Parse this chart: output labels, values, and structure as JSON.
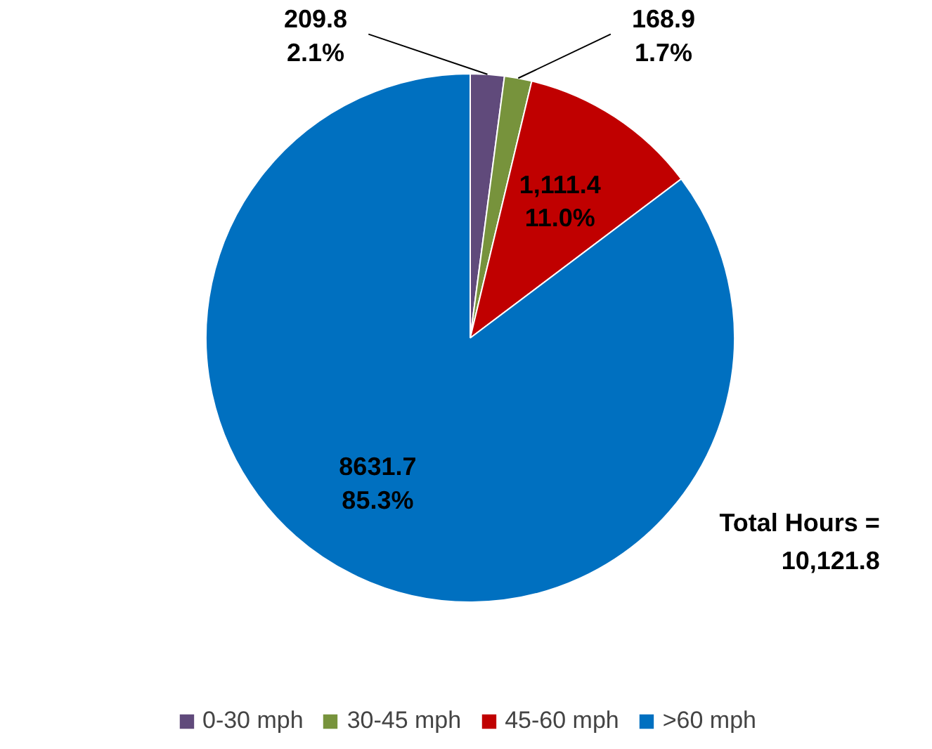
{
  "chart_data": {
    "type": "pie",
    "categories": [
      "0-30 mph",
      "30-45 mph",
      "45-60 mph",
      ">60 mph"
    ],
    "values": [
      209.8,
      168.9,
      1111.4,
      8631.7
    ],
    "colors": [
      "#604a7b",
      "#77933c",
      "#c00000",
      "#0070c0"
    ],
    "value_labels": [
      "209.8\n2.1%",
      "168.9\n1.7%",
      "1,111.4\n11.0%",
      "8631.7\n85.3%"
    ],
    "annotations": [
      "Total Hours =\n10,121.8"
    ],
    "legend": "bottom"
  }
}
